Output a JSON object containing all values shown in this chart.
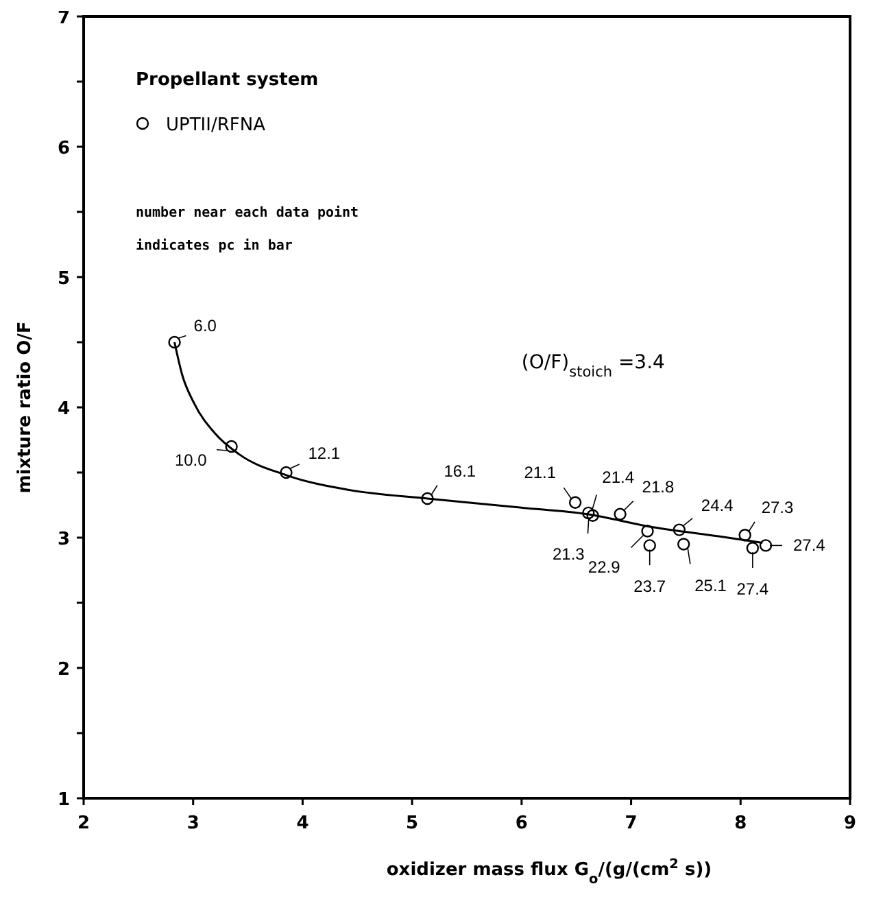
{
  "chart_data": {
    "type": "scatter",
    "xlabel": "oxidizer mass flux G$_{o}$/(g/(cm$^{2}$  s))",
    "ylabel": "mixture ratio O/F",
    "legend_title": "Propellant system",
    "legend": "top left",
    "marker": "circle",
    "grid": false,
    "xlim": [
      2,
      9
    ],
    "xticks": [
      2,
      3,
      4,
      5,
      6,
      7,
      8,
      9
    ],
    "ylim": [
      1,
      7
    ],
    "yticks": [
      1,
      {
        "value": 1.5,
        "label": null
      },
      2,
      {
        "value": 2.5,
        "label": null
      },
      3,
      {
        "value": 3.5,
        "label": null
      },
      4,
      {
        "value": 4.5,
        "label": null
      },
      5,
      {
        "value": 5.5,
        "label": null
      },
      6,
      {
        "value": 6.5,
        "label": null
      },
      7
    ],
    "series": [
      {
        "name": "UPTII/RFNA",
        "color": "#000000",
        "x": [
          2.83,
          3.35,
          3.85,
          5.14,
          6.49,
          6.61,
          6.65,
          6.9,
          7.15,
          7.17,
          7.44,
          7.48,
          8.04,
          8.11,
          8.23
        ],
        "values": [
          4.5,
          3.7,
          3.5,
          3.3,
          3.27,
          3.19,
          3.17,
          3.18,
          3.05,
          2.94,
          3.06,
          2.95,
          3.02,
          2.92,
          2.94
        ]
      },
      {
        "type": "line",
        "color": "#000000",
        "marker": "none",
        "line_style": "solid",
        "x": [
          2.83,
          2.9,
          3.01,
          3.2,
          3.42,
          3.85,
          4.4,
          5.14,
          6,
          6.6,
          7.2,
          7.8,
          8.2
        ],
        "values": [
          4.5,
          4.25,
          4.03,
          3.8,
          3.64,
          3.48,
          3.37,
          3.3,
          3.23,
          3.18,
          3.08,
          3.01,
          2.96
        ]
      }
    ],
    "annotations": [
      {
        "text": "6.0",
        "x": 2.83,
        "y": 4.5
      },
      {
        "text": "10.0",
        "x": 3.35,
        "y": 3.7
      },
      {
        "text": "12.1",
        "x": 3.85,
        "y": 3.5
      },
      {
        "text": "16.1",
        "x": 5.14,
        "y": 3.3
      },
      {
        "text": "21.1",
        "x": 6.49,
        "y": 3.27
      },
      {
        "text": "21.4",
        "x": 6.61,
        "y": 3.19
      },
      {
        "text": "21.3",
        "x": 6.65,
        "y": 3.17
      },
      {
        "text": "21.8",
        "x": 6.9,
        "y": 3.18
      },
      {
        "text": "22.9",
        "x": 7.15,
        "y": 3.05
      },
      {
        "text": "23.7",
        "x": 7.17,
        "y": 2.94
      },
      {
        "text": "24.4",
        "x": 7.44,
        "y": 3.06
      },
      {
        "text": "25.1",
        "x": 7.48,
        "y": 2.95
      },
      {
        "text": "27.3",
        "x": 8.04,
        "y": 3.02
      },
      {
        "text": "27.4",
        "x": 8.11,
        "y": 2.92
      },
      {
        "text": "27.4",
        "x": 8.23,
        "y": 2.94
      },
      "number near each data point",
      "indicates pc in bar",
      "(O/F)$_{stoich}$ =3.4"
    ]
  }
}
